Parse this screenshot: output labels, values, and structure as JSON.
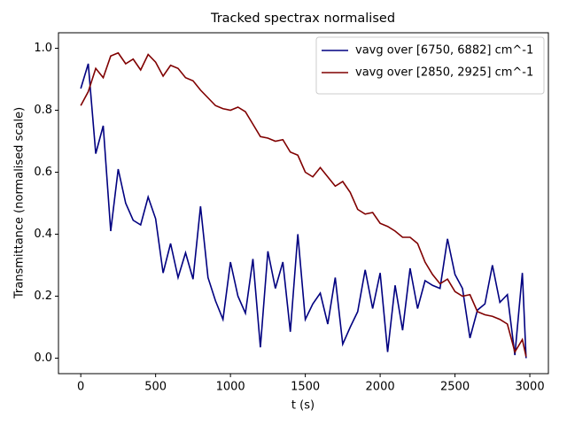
{
  "chart_data": {
    "type": "line",
    "title": "Tracked spectrax normalised",
    "x_label": "t (s)",
    "y_label": "Transmittance (normalised scale)",
    "x": [
      0,
      50,
      100,
      150,
      200,
      250,
      300,
      350,
      400,
      450,
      500,
      550,
      600,
      650,
      700,
      750,
      800,
      850,
      900,
      950,
      1000,
      1050,
      1100,
      1150,
      1200,
      1250,
      1300,
      1350,
      1400,
      1450,
      1500,
      1550,
      1600,
      1650,
      1700,
      1750,
      1800,
      1850,
      1900,
      1950,
      2000,
      2050,
      2100,
      2150,
      2200,
      2250,
      2300,
      2350,
      2400,
      2450,
      2500,
      2550,
      2600,
      2650,
      2700,
      2750,
      2800,
      2850,
      2900,
      2950,
      2975
    ],
    "series": [
      {
        "name": "vavg over [6750, 6882] cm^-1",
        "color": "#000080",
        "values": [
          0.87,
          0.95,
          0.66,
          0.75,
          0.41,
          0.61,
          0.5,
          0.445,
          0.43,
          0.52,
          0.45,
          0.275,
          0.37,
          0.26,
          0.34,
          0.255,
          0.49,
          0.26,
          0.185,
          0.125,
          0.31,
          0.2,
          0.145,
          0.32,
          0.035,
          0.345,
          0.225,
          0.31,
          0.085,
          0.4,
          0.125,
          0.175,
          0.21,
          0.11,
          0.26,
          0.045,
          0.1,
          0.15,
          0.285,
          0.16,
          0.275,
          0.02,
          0.235,
          0.09,
          0.29,
          0.16,
          0.25,
          0.235,
          0.225,
          0.385,
          0.27,
          0.225,
          0.065,
          0.155,
          0.175,
          0.3,
          0.18,
          0.205,
          0.01,
          0.275,
          0.0
        ]
      },
      {
        "name": "vavg over [2850, 2925] cm^-1",
        "color": "#800000",
        "values": [
          0.815,
          0.86,
          0.935,
          0.905,
          0.975,
          0.985,
          0.95,
          0.965,
          0.93,
          0.98,
          0.955,
          0.91,
          0.945,
          0.935,
          0.905,
          0.895,
          0.865,
          0.84,
          0.815,
          0.805,
          0.8,
          0.81,
          0.795,
          0.755,
          0.715,
          0.71,
          0.7,
          0.705,
          0.665,
          0.655,
          0.6,
          0.585,
          0.615,
          0.585,
          0.555,
          0.57,
          0.535,
          0.48,
          0.465,
          0.47,
          0.435,
          0.425,
          0.41,
          0.39,
          0.39,
          0.37,
          0.31,
          0.27,
          0.24,
          0.255,
          0.215,
          0.2,
          0.205,
          0.15,
          0.14,
          0.135,
          0.125,
          0.11,
          0.02,
          0.06,
          0.005
        ]
      }
    ],
    "xlim": [
      -149,
      3124
    ],
    "ylim": [
      -0.05,
      1.05
    ],
    "xticks": [
      0,
      500,
      1000,
      1500,
      2000,
      2500,
      3000
    ],
    "yticks": [
      {
        "value": 0,
        "label": "0.0"
      },
      0.2,
      0.4,
      0.6,
      0.8,
      {
        "value": 1,
        "label": "1.0"
      }
    ],
    "grid": false,
    "legend": "upper right"
  }
}
